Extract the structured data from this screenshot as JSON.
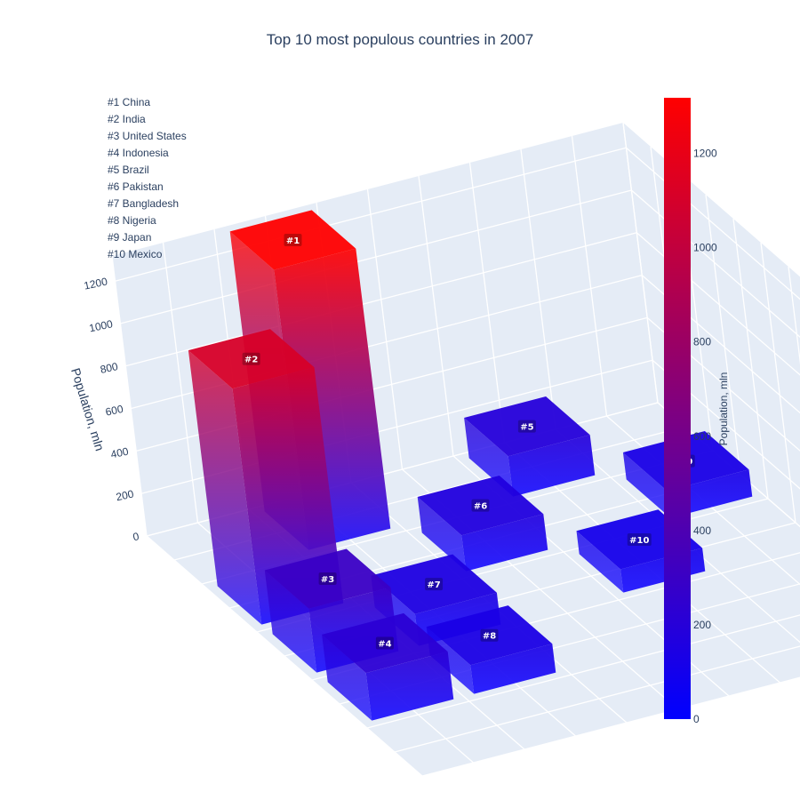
{
  "chart_data": {
    "type": "bar3d",
    "title": "Top 10 most populous countries in 2007",
    "zlabel": "Population, mln",
    "z_ticks": [
      "0",
      "200",
      "400",
      "600",
      "800",
      "1000",
      "1200"
    ],
    "zlim": [
      0,
      1318
    ],
    "annotation_lines": [
      "#1 China",
      "#2 India",
      "#3 United States",
      "#4 Indonesia",
      "#5 Brazil",
      "#6 Pakistan",
      "#7 Bangladesh",
      "#8 Nigeria",
      "#9 Japan",
      "#10 Mexico"
    ],
    "bars": [
      {
        "label": "#1",
        "country": "China",
        "value": 1318,
        "row": 0,
        "col": 1
      },
      {
        "label": "#2",
        "country": "India",
        "value": 1110,
        "row": 1,
        "col": 0
      },
      {
        "label": "#3",
        "country": "United States",
        "value": 301,
        "row": 2,
        "col": 0
      },
      {
        "label": "#4",
        "country": "Indonesia",
        "value": 224,
        "row": 3,
        "col": 0
      },
      {
        "label": "#5",
        "country": "Brazil",
        "value": 190,
        "row": 0,
        "col": 3
      },
      {
        "label": "#6",
        "country": "Pakistan",
        "value": 169,
        "row": 1,
        "col": 2
      },
      {
        "label": "#7",
        "country": "Bangladesh",
        "value": 150,
        "row": 2,
        "col": 1
      },
      {
        "label": "#8",
        "country": "Nigeria",
        "value": 135,
        "row": 3,
        "col": 1
      },
      {
        "label": "#9",
        "country": "Japan",
        "value": 127,
        "row": 1,
        "col": 4
      },
      {
        "label": "#10",
        "country": "Mexico",
        "value": 109,
        "row": 2,
        "col": 3
      }
    ],
    "colorscale": [
      "#0000ff",
      "#ff0000"
    ],
    "colorbar": {
      "title": "Population, mln",
      "ticks": [
        "0",
        "200",
        "400",
        "600",
        "800",
        "1000",
        "1200"
      ],
      "range": [
        0,
        1318
      ]
    }
  }
}
